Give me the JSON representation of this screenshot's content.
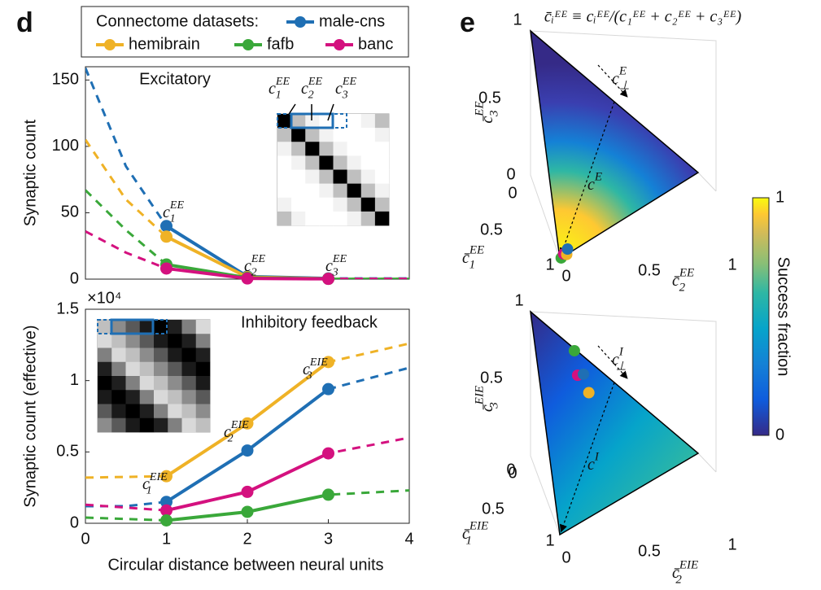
{
  "chart_data": [
    {
      "type": "line",
      "panel_label": "d",
      "ylabel": "Synaptic count",
      "legend_title": "Connectome datasets:",
      "xlim": [
        0,
        4
      ],
      "ylim": [
        0,
        160
      ],
      "yticks": [
        0,
        50,
        100,
        150
      ],
      "x": [
        1,
        2,
        3
      ],
      "fit_x": [
        0,
        0.5,
        1,
        2,
        3,
        4
      ],
      "series": [
        {
          "name": "male-cns",
          "color": "#1f6fb4",
          "values": [
            40,
            2,
            0.5
          ],
          "fit_values": [
            159,
            85,
            40,
            2,
            0.5,
            0.5
          ]
        },
        {
          "name": "hemibrain",
          "color": "#efb226",
          "values": [
            32,
            1.5,
            0.3
          ],
          "fit_values": [
            105,
            60,
            32,
            1.5,
            0.3,
            0.3
          ]
        },
        {
          "name": "fafb",
          "color": "#3aa83a",
          "values": [
            11,
            1,
            0.2
          ],
          "fit_values": [
            67,
            37,
            11,
            1,
            0.2,
            0.2
          ]
        },
        {
          "name": "banc",
          "color": "#d4117f",
          "values": [
            8,
            0.5,
            0.2
          ],
          "fit_values": [
            36,
            20,
            8,
            0.5,
            0.2,
            0.2
          ]
        }
      ],
      "annotations": [
        {
          "text": "Excitatory"
        },
        {
          "base": "c",
          "sub": "1",
          "sup": "EE"
        },
        {
          "base": "c",
          "sub": "2",
          "sup": "EE"
        },
        {
          "base": "c",
          "sub": "3",
          "sup": "EE"
        },
        {
          "base": "c",
          "sub": "1",
          "sup": "EE"
        },
        {
          "base": "c",
          "sub": "2",
          "sup": "EE"
        },
        {
          "base": "c",
          "sub": "3",
          "sup": "EE"
        }
      ]
    },
    {
      "type": "line",
      "ylabel": "Synaptic count (effective)",
      "xlabel": "Circular distance between neural units",
      "exponent_label": "×10⁴",
      "xlim": [
        0,
        4
      ],
      "xticks": [
        0,
        1,
        2,
        3,
        4
      ],
      "ylim": [
        0,
        15000
      ],
      "yticks": [
        {
          "value": 0,
          "label": "0"
        },
        {
          "value": 5000,
          "label": "0.5"
        },
        {
          "value": 10000,
          "label": "1"
        },
        {
          "value": 15000,
          "label": "1.5"
        }
      ],
      "x": [
        1,
        2,
        3
      ],
      "fit_x": [
        0,
        0.5,
        1,
        2,
        3,
        4
      ],
      "series": [
        {
          "color": "#efb226",
          "values": [
            3300,
            7000,
            11300
          ],
          "fit_values": [
            3200,
            3250,
            3300,
            7000,
            11300,
            12600
          ]
        },
        {
          "color": "#1f6fb4",
          "values": [
            1500,
            5100,
            9400
          ],
          "fit_values": [
            1200,
            1200,
            1500,
            5100,
            9400,
            10900
          ]
        },
        {
          "color": "#d4117f",
          "values": [
            900,
            2200,
            4900
          ],
          "fit_values": [
            1300,
            1100,
            900,
            2200,
            4900,
            6000
          ]
        },
        {
          "color": "#3aa83a",
          "values": [
            200,
            800,
            2000
          ],
          "fit_values": [
            400,
            300,
            200,
            800,
            2000,
            2300
          ]
        }
      ],
      "annotations": [
        {
          "text": "Inhibitory feedback"
        },
        {
          "base": "c",
          "sub": "1",
          "sup": "EIE"
        },
        {
          "base": "c",
          "sub": "2",
          "sup": "EIE"
        },
        {
          "base": "c",
          "sub": "3",
          "sup": "EIE"
        }
      ]
    },
    {
      "type": "ternary",
      "panel_label": "e",
      "title": "c̄ᵢᴱᴱ ≡ cᵢᴱᴱ/(c₁ᴱᴱ + c₂ᴱᴱ + c₃ᴱᴱ)",
      "axes": [
        {
          "label": {
            "base": "c̄",
            "sub": "3",
            "sup": "EE"
          },
          "ticks": [
            0,
            0.5,
            1
          ]
        },
        {
          "label": {
            "base": "c̄",
            "sub": "1",
            "sup": "EE"
          },
          "ticks": [
            0,
            0.5,
            1
          ]
        },
        {
          "label": {
            "base": "c̄",
            "sub": "2",
            "sup": "EE"
          },
          "ticks": [
            0,
            0.5,
            1
          ]
        }
      ],
      "points": [
        {
          "color": "#3aa83a",
          "values": [
            0.99,
            0.01,
            0
          ]
        },
        {
          "color": "#d4117f",
          "values": [
            0.96,
            0.03,
            0.01
          ]
        },
        {
          "color": "#efb226",
          "values": [
            0.95,
            0.05,
            0
          ]
        },
        {
          "color": "#1f6fb4",
          "values": [
            0.92,
            0.06,
            0.02
          ]
        }
      ],
      "annotations": [
        {
          "base": "c",
          "sub": "⊥",
          "sup": "E"
        },
        {
          "base": "c",
          "sup": "E"
        }
      ],
      "colorbar": {
        "label": "Success fraction",
        "lim": [
          0,
          1
        ],
        "ticks": [
          0,
          1
        ]
      }
    },
    {
      "type": "ternary",
      "axes": [
        {
          "label": {
            "base": "c̄",
            "sub": "3",
            "sup": "EIE"
          },
          "ticks": [
            0,
            0.5,
            1
          ]
        },
        {
          "label": {
            "base": "c̄",
            "sub": "1",
            "sup": "EIE"
          },
          "ticks": [
            0,
            0.5,
            1
          ]
        },
        {
          "label": {
            "base": "c̄",
            "sub": "2",
            "sup": "EIE"
          },
          "ticks": [
            0,
            0.5,
            1
          ]
        }
      ],
      "points": [
        {
          "color": "#3aa83a",
          "values": [
            0.01,
            0.26,
            0.73
          ]
        },
        {
          "color": "#d4117f",
          "values": [
            0.12,
            0.26,
            0.62
          ]
        },
        {
          "color": "#1f6fb4",
          "values": [
            0.09,
            0.3,
            0.61
          ]
        },
        {
          "color": "#efb226",
          "values": [
            0.16,
            0.32,
            0.52
          ]
        }
      ],
      "annotations": [
        {
          "base": "c",
          "sub": "⊥",
          "sup": "I"
        },
        {
          "base": "c",
          "sup": "I"
        }
      ]
    }
  ]
}
